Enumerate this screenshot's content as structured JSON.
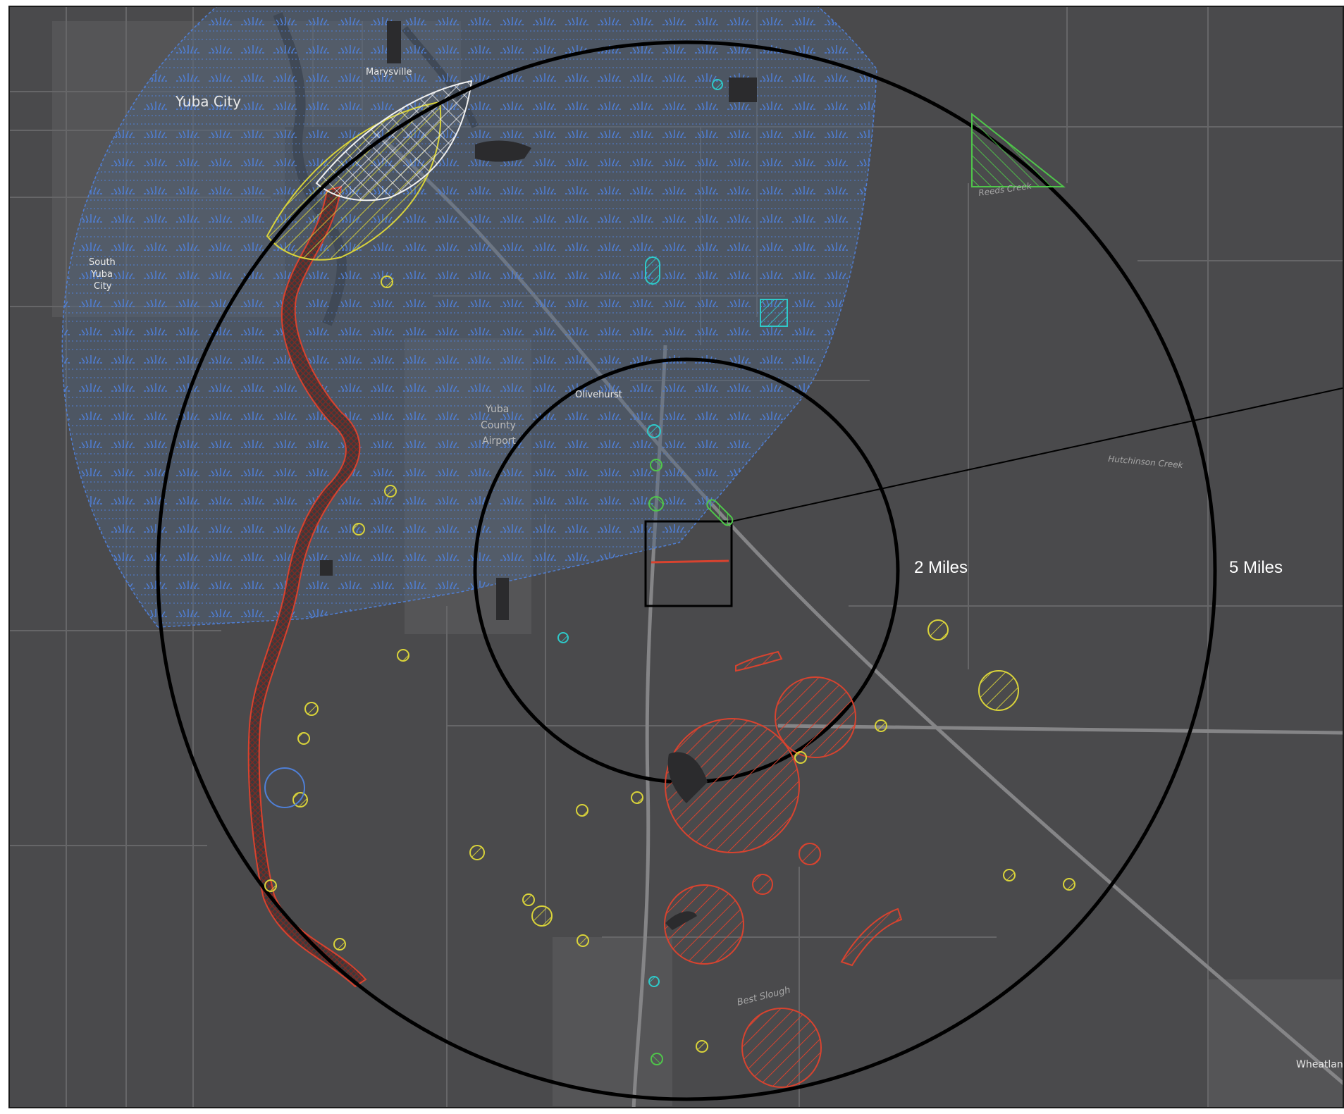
{
  "map": {
    "places": {
      "marysville": "Marysville",
      "yuba_city": "Yuba City",
      "south_yuba_city_1": "South",
      "south_yuba_city_2": "Yuba",
      "south_yuba_city_3": "City",
      "olivehurst": "Olivehurst",
      "airport_1": "Yuba",
      "airport_2": "County",
      "airport_3": "Airport",
      "wheatland": "Wheatland"
    },
    "waterways": {
      "reeds_creek": "Reeds Creek",
      "hutchinson_creek": "Hutchinson Creek",
      "best_slough": "Best Slough"
    },
    "rings": {
      "inner_label": "2 Miles",
      "outer_label": "5 Miles"
    },
    "colors": {
      "basemap": "#4a4a4c",
      "roads": "#6a6a6c",
      "highway": "#8a8a8c",
      "ring_stroke": "#000000",
      "blue_zone": "#4f7fd6",
      "red_feature": "#d8432f",
      "yellow_feature": "#d9d33a",
      "green_feature": "#4fc64a",
      "cyan_feature": "#2ec9c9",
      "white_feature": "#f0f0f0"
    }
  }
}
